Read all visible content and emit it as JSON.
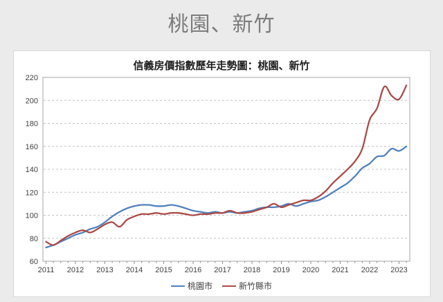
{
  "page": {
    "title": "桃園、新竹",
    "background_color": "#ebebeb",
    "card_background_color": "#ffffff"
  },
  "chart_data": {
    "type": "line",
    "title": "信義房價指數歷年走勢圖：桃園、新竹",
    "x_unit": "quarter",
    "x_start_year": 2011,
    "x_step_years": 0.25,
    "x_tick_labels": [
      "2011",
      "2012",
      "2013",
      "2014",
      "2015",
      "2016",
      "2017",
      "2018",
      "2019",
      "2020",
      "2021",
      "2022",
      "2023"
    ],
    "y_ticks": [
      60,
      80,
      100,
      120,
      140,
      160,
      180,
      200,
      220
    ],
    "ylim": [
      60,
      220
    ],
    "grid": "horizontal-dashed",
    "legend_position": "bottom-center",
    "axis_label_color": "#3f3f3f",
    "gridline_color": "#c2c2c2",
    "plot_border_color": "#a6a6a6",
    "series": [
      {
        "name": "桃園市",
        "color": "#4f81bd",
        "values": [
          72,
          74,
          77,
          80,
          83,
          85,
          88,
          90,
          94,
          99,
          103,
          106,
          108,
          109,
          109,
          108,
          108,
          109,
          108,
          106,
          104,
          103,
          102,
          103,
          102,
          103,
          102,
          103,
          104,
          106,
          107,
          107,
          108,
          110,
          108,
          110,
          112,
          113,
          116,
          120,
          124,
          128,
          134,
          141,
          145,
          151,
          152,
          158,
          156,
          160
        ]
      },
      {
        "name": "新竹縣市",
        "color": "#ab4a47",
        "values": [
          77,
          74,
          78,
          82,
          85,
          87,
          85,
          88,
          92,
          94,
          90,
          96,
          99,
          101,
          101,
          102,
          101,
          102,
          102,
          101,
          100,
          101,
          101,
          102,
          102,
          104,
          102,
          102,
          103,
          105,
          107,
          110,
          107,
          109,
          111,
          113,
          113,
          116,
          121,
          128,
          134,
          140,
          147,
          158,
          183,
          193,
          212,
          204,
          201,
          213
        ]
      }
    ]
  }
}
